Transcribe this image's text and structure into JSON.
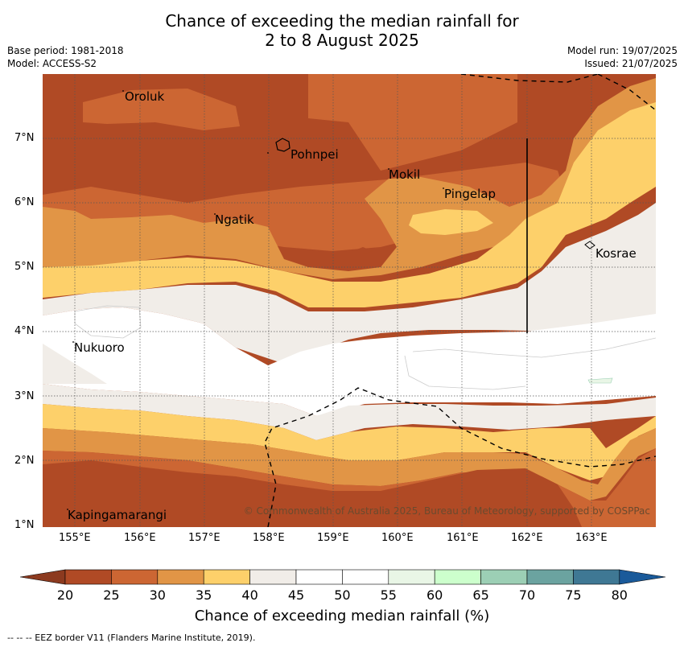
{
  "header": {
    "title_line1": "Chance of exceeding the median rainfall for",
    "title_line2": "2 to 8 August 2025",
    "base_period": "Base period: 1981-2018",
    "model": "Model: ACCESS-S2",
    "model_run": "Model run: 19/07/2025",
    "issued": "Issued: 21/07/2025"
  },
  "map": {
    "lat_labels": [
      "7°N",
      "6°N",
      "5°N",
      "4°N",
      "3°N",
      "2°N",
      "1°N"
    ],
    "lon_labels": [
      "155°E",
      "156°E",
      "157°E",
      "158°E",
      "159°E",
      "160°E",
      "161°E",
      "162°E",
      "163°E"
    ],
    "places": {
      "oroluk": "Oroluk",
      "pohnpei": "Pohnpei",
      "mokil": "Mokil",
      "pingelap": "Pingelap",
      "ngatik": "Ngatik",
      "kosrae": "Kosrae",
      "nukuoro": "Nukuoro",
      "kapingamarangi": "Kapingamarangi"
    },
    "credit": "© Commonwealth of Australia 2025, Bureau of Meteorology, supported by COSPPac"
  },
  "colorbar": {
    "ticks": [
      "20",
      "25",
      "30",
      "35",
      "40",
      "45",
      "50",
      "55",
      "60",
      "65",
      "70",
      "75",
      "80"
    ],
    "colors": [
      "#8c3a1f",
      "#b04a25",
      "#cc6633",
      "#e19546",
      "#fdd06a",
      "#f1ede8",
      "#ffffff",
      "#ffffff",
      "#e9f6e6",
      "#ccffcc",
      "#9ccfb5",
      "#6ba3a0",
      "#3f7894",
      "#1a5a9a"
    ],
    "title": "Chance of exceeding median rainfall (%)"
  },
  "footer": {
    "legend": "--  --  -- EEZ border V11 (Flanders Marine Institute, 2019)."
  }
}
